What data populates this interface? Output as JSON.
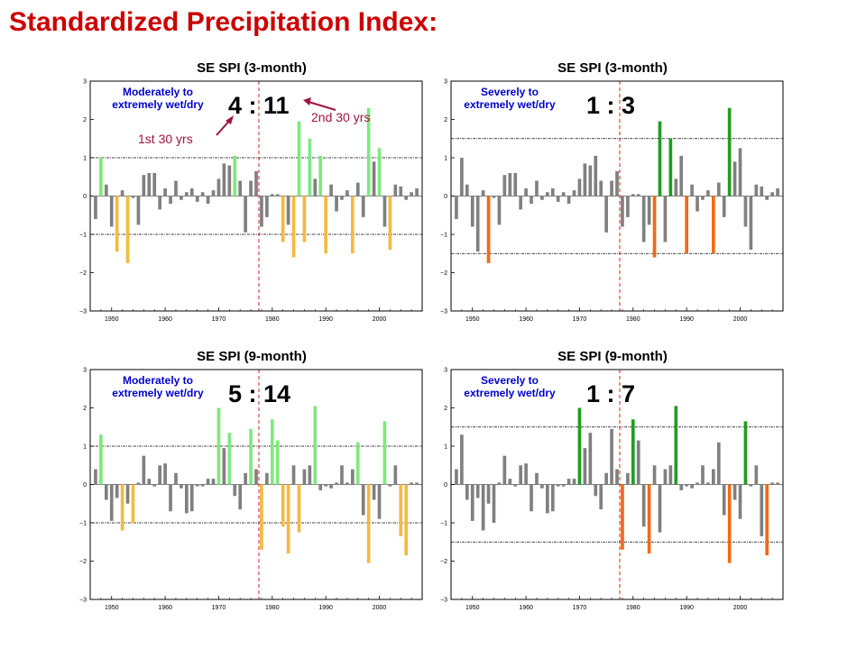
{
  "title": "Standardized Precipitation Index:",
  "colors": {
    "title": "#cc0000",
    "normal": "#808080",
    "wet_moderate": "#7fe87f",
    "dry_moderate": "#f5b942",
    "wet_severe": "#1f9e1f",
    "dry_severe": "#f26a14",
    "divider": "#e02020",
    "label": "#0000cc",
    "annotation": "#a0143c"
  },
  "chart_data": [
    {
      "type": "bar",
      "title": "SE SPI (3-month)",
      "label": [
        "Moderately to",
        "extremely wet/dry"
      ],
      "ratio": "4 : 11",
      "annotations": [
        "1st 30 yrs",
        "2nd 30 yrs"
      ],
      "threshold": 1.0,
      "divider_year": 1977.5,
      "xlim": [
        1946,
        2008
      ],
      "ylim": [
        -3,
        3
      ],
      "xticks": [
        "1950",
        "1960",
        "1970",
        "1980",
        "1990",
        "2000"
      ],
      "yticks": [
        "3",
        "2",
        "1",
        "0",
        "−1",
        "−2",
        "−3"
      ],
      "x": [
        1947,
        1948,
        1949,
        1950,
        1951,
        1952,
        1953,
        1954,
        1955,
        1956,
        1957,
        1958,
        1959,
        1960,
        1961,
        1962,
        1963,
        1964,
        1965,
        1966,
        1967,
        1968,
        1969,
        1970,
        1971,
        1972,
        1973,
        1974,
        1975,
        1976,
        1977,
        1978,
        1979,
        1980,
        1981,
        1982,
        1983,
        1984,
        1985,
        1986,
        1987,
        1988,
        1989,
        1990,
        1991,
        1992,
        1993,
        1994,
        1995,
        1996,
        1997,
        1998,
        1999,
        2000,
        2001,
        2002,
        2003,
        2004,
        2005,
        2006,
        2007
      ],
      "values": [
        -0.6,
        1.0,
        0.3,
        -0.8,
        -1.45,
        0.15,
        -1.75,
        -0.05,
        -0.75,
        0.55,
        0.6,
        0.6,
        -0.35,
        0.2,
        -0.2,
        0.4,
        -0.1,
        0.1,
        0.2,
        -0.15,
        0.1,
        -0.2,
        0.15,
        0.45,
        0.85,
        0.8,
        1.05,
        0.4,
        -0.95,
        0.4,
        0.65,
        -0.8,
        -0.55,
        0.05,
        0.05,
        -1.2,
        -0.75,
        -1.6,
        1.95,
        -1.2,
        1.5,
        0.45,
        1.05,
        -1.5,
        0.3,
        -0.4,
        -0.1,
        0.15,
        -1.5,
        0.35,
        -0.55,
        2.3,
        0.9,
        1.25,
        -0.8,
        -1.4,
        0.3,
        0.25,
        -0.1,
        0.1,
        0.2
      ]
    },
    {
      "type": "bar",
      "title": "SE SPI (3-month)",
      "label": [
        "Severely to",
        "extremely wet/dry"
      ],
      "ratio": "1 : 3",
      "threshold": 1.5,
      "divider_year": 1977.5,
      "xlim": [
        1946,
        2008
      ],
      "ylim": [
        -3,
        3
      ],
      "xticks": [
        "1950",
        "1960",
        "1970",
        "1980",
        "1990",
        "2000"
      ],
      "yticks": [
        "3",
        "2",
        "1",
        "0",
        "−1",
        "−2",
        "−3"
      ],
      "x": [
        1947,
        1948,
        1949,
        1950,
        1951,
        1952,
        1953,
        1954,
        1955,
        1956,
        1957,
        1958,
        1959,
        1960,
        1961,
        1962,
        1963,
        1964,
        1965,
        1966,
        1967,
        1968,
        1969,
        1970,
        1971,
        1972,
        1973,
        1974,
        1975,
        1976,
        1977,
        1978,
        1979,
        1980,
        1981,
        1982,
        1983,
        1984,
        1985,
        1986,
        1987,
        1988,
        1989,
        1990,
        1991,
        1992,
        1993,
        1994,
        1995,
        1996,
        1997,
        1998,
        1999,
        2000,
        2001,
        2002,
        2003,
        2004,
        2005,
        2006,
        2007
      ],
      "values": [
        -0.6,
        1.0,
        0.3,
        -0.8,
        -1.45,
        0.15,
        -1.75,
        -0.05,
        -0.75,
        0.55,
        0.6,
        0.6,
        -0.35,
        0.2,
        -0.2,
        0.4,
        -0.1,
        0.1,
        0.2,
        -0.15,
        0.1,
        -0.2,
        0.15,
        0.45,
        0.85,
        0.8,
        1.05,
        0.4,
        -0.95,
        0.4,
        0.65,
        -0.8,
        -0.55,
        0.05,
        0.05,
        -1.2,
        -0.75,
        -1.6,
        1.95,
        -1.2,
        1.5,
        0.45,
        1.05,
        -1.5,
        0.3,
        -0.4,
        -0.1,
        0.15,
        -1.5,
        0.35,
        -0.55,
        2.3,
        0.9,
        1.25,
        -0.8,
        -1.4,
        0.3,
        0.25,
        -0.1,
        0.1,
        0.2
      ]
    },
    {
      "type": "bar",
      "title": "SE SPI (9-month)",
      "label": [
        "Moderately to",
        "extremely wet/dry"
      ],
      "ratio": "5 : 14",
      "threshold": 1.0,
      "divider_year": 1977.5,
      "xlim": [
        1946,
        2008
      ],
      "ylim": [
        -3,
        3
      ],
      "xticks": [
        "1950",
        "1960",
        "1970",
        "1980",
        "1990",
        "2000"
      ],
      "yticks": [
        "3",
        "2",
        "1",
        "0",
        "−1",
        "−2",
        "−3"
      ],
      "x": [
        1947,
        1948,
        1949,
        1950,
        1951,
        1952,
        1953,
        1954,
        1955,
        1956,
        1957,
        1958,
        1959,
        1960,
        1961,
        1962,
        1963,
        1964,
        1965,
        1966,
        1967,
        1968,
        1969,
        1970,
        1971,
        1972,
        1973,
        1974,
        1975,
        1976,
        1977,
        1978,
        1979,
        1980,
        1981,
        1982,
        1983,
        1984,
        1985,
        1986,
        1987,
        1988,
        1989,
        1990,
        1991,
        1992,
        1993,
        1994,
        1995,
        1996,
        1997,
        1998,
        1999,
        2000,
        2001,
        2002,
        2003,
        2004,
        2005,
        2006,
        2007
      ],
      "values": [
        0.4,
        1.3,
        -0.4,
        -0.95,
        -0.35,
        -1.2,
        -0.5,
        -1.0,
        0.05,
        0.75,
        0.15,
        -0.05,
        0.5,
        0.55,
        -0.7,
        0.3,
        -0.1,
        -0.75,
        -0.7,
        -0.05,
        -0.05,
        0.15,
        0.15,
        2.0,
        0.95,
        1.35,
        -0.3,
        -0.65,
        0.3,
        1.45,
        0.4,
        -1.7,
        0.3,
        1.7,
        1.15,
        -1.1,
        -1.8,
        0.5,
        -1.25,
        0.4,
        0.5,
        2.05,
        -0.15,
        -0.05,
        -0.1,
        0.05,
        0.5,
        0.05,
        0.4,
        1.1,
        -0.8,
        -2.05,
        -0.4,
        -0.9,
        1.65,
        -0.05,
        0.5,
        -1.35,
        -1.85,
        0.05,
        0.05
      ]
    },
    {
      "type": "bar",
      "title": "SE SPI (9-month)",
      "label": [
        "Severely to",
        "extremely wet/dry"
      ],
      "ratio": "1 : 7",
      "threshold": 1.5,
      "divider_year": 1977.5,
      "xlim": [
        1946,
        2008
      ],
      "ylim": [
        -3,
        3
      ],
      "xticks": [
        "1950",
        "1960",
        "1970",
        "1980",
        "1990",
        "2000"
      ],
      "yticks": [
        "3",
        "2",
        "1",
        "0",
        "−1",
        "−2",
        "−3"
      ],
      "x": [
        1947,
        1948,
        1949,
        1950,
        1951,
        1952,
        1953,
        1954,
        1955,
        1956,
        1957,
        1958,
        1959,
        1960,
        1961,
        1962,
        1963,
        1964,
        1965,
        1966,
        1967,
        1968,
        1969,
        1970,
        1971,
        1972,
        1973,
        1974,
        1975,
        1976,
        1977,
        1978,
        1979,
        1980,
        1981,
        1982,
        1983,
        1984,
        1985,
        1986,
        1987,
        1988,
        1989,
        1990,
        1991,
        1992,
        1993,
        1994,
        1995,
        1996,
        1997,
        1998,
        1999,
        2000,
        2001,
        2002,
        2003,
        2004,
        2005,
        2006,
        2007
      ],
      "values": [
        0.4,
        1.3,
        -0.4,
        -0.95,
        -0.35,
        -1.2,
        -0.5,
        -1.0,
        0.05,
        0.75,
        0.15,
        -0.05,
        0.5,
        0.55,
        -0.7,
        0.3,
        -0.1,
        -0.75,
        -0.7,
        -0.05,
        -0.05,
        0.15,
        0.15,
        2.0,
        0.95,
        1.35,
        -0.3,
        -0.65,
        0.3,
        1.45,
        0.4,
        -1.7,
        0.3,
        1.7,
        1.15,
        -1.1,
        -1.8,
        0.5,
        -1.25,
        0.4,
        0.5,
        2.05,
        -0.15,
        -0.05,
        -0.1,
        0.05,
        0.5,
        0.05,
        0.4,
        1.1,
        -0.8,
        -2.05,
        -0.4,
        -0.9,
        1.65,
        -0.05,
        0.5,
        -1.35,
        -1.85,
        0.05,
        0.05
      ]
    }
  ]
}
